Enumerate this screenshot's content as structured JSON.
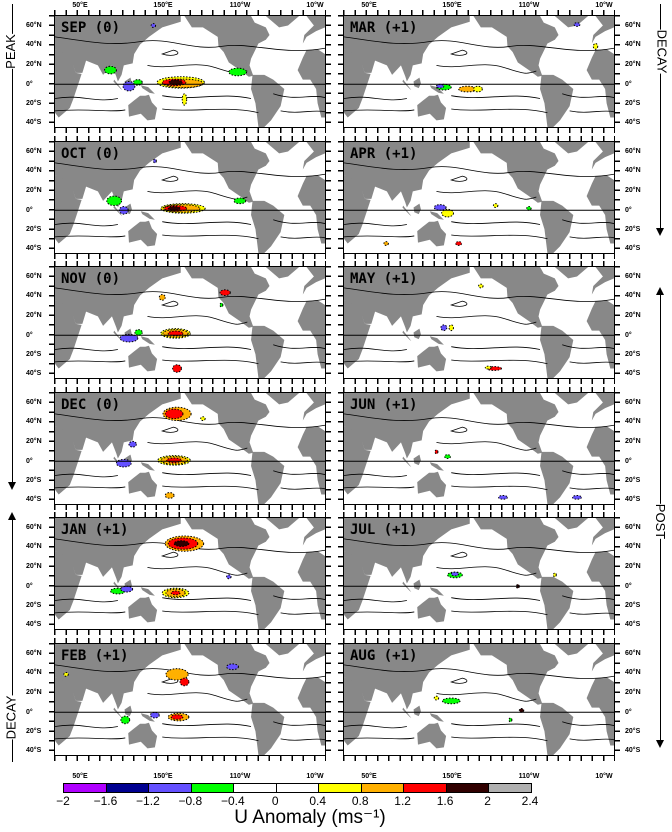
{
  "figure": {
    "panels_left": [
      {
        "title": "SEP  (0)"
      },
      {
        "title": "OCT  (0)"
      },
      {
        "title": "NOV  (0)"
      },
      {
        "title": "DEC  (0)"
      },
      {
        "title": "JAN (+1)"
      },
      {
        "title": "FEB (+1)"
      }
    ],
    "panels_right": [
      {
        "title": "MAR (+1)"
      },
      {
        "title": "APR (+1)"
      },
      {
        "title": "MAY (+1)"
      },
      {
        "title": "JUN (+1)"
      },
      {
        "title": "JUL (+1)"
      },
      {
        "title": "AUG (+1)"
      }
    ],
    "lat_labels": [
      "60°N",
      "40°N",
      "20°N",
      "0°",
      "20°S",
      "40°S"
    ],
    "lon_labels": [
      "50°E",
      "150°E",
      "110°W",
      "10°W"
    ],
    "side_labels": {
      "left_top": "PEAK",
      "left_bottom": "DECAY",
      "right_top": "DECAY",
      "right_bottom": "POST"
    }
  },
  "colorbar": {
    "title": "U Anomaly (ms⁻¹)",
    "ticks": [
      "−2",
      "−1.6",
      "−1.2",
      "−0.8",
      "−0.4",
      "0",
      "0.4",
      "0.8",
      "1.2",
      "1.6",
      "2",
      "2.4"
    ],
    "colors": [
      "#b000ff",
      "#000090",
      "#6450ff",
      "#00ff00",
      "#ffffff",
      "#ffffff",
      "#ffff00",
      "#ffb000",
      "#ff0000",
      "#300000",
      "#b0b0b0"
    ]
  },
  "colors": {
    "land": "#888888",
    "contour": "#000000"
  }
}
